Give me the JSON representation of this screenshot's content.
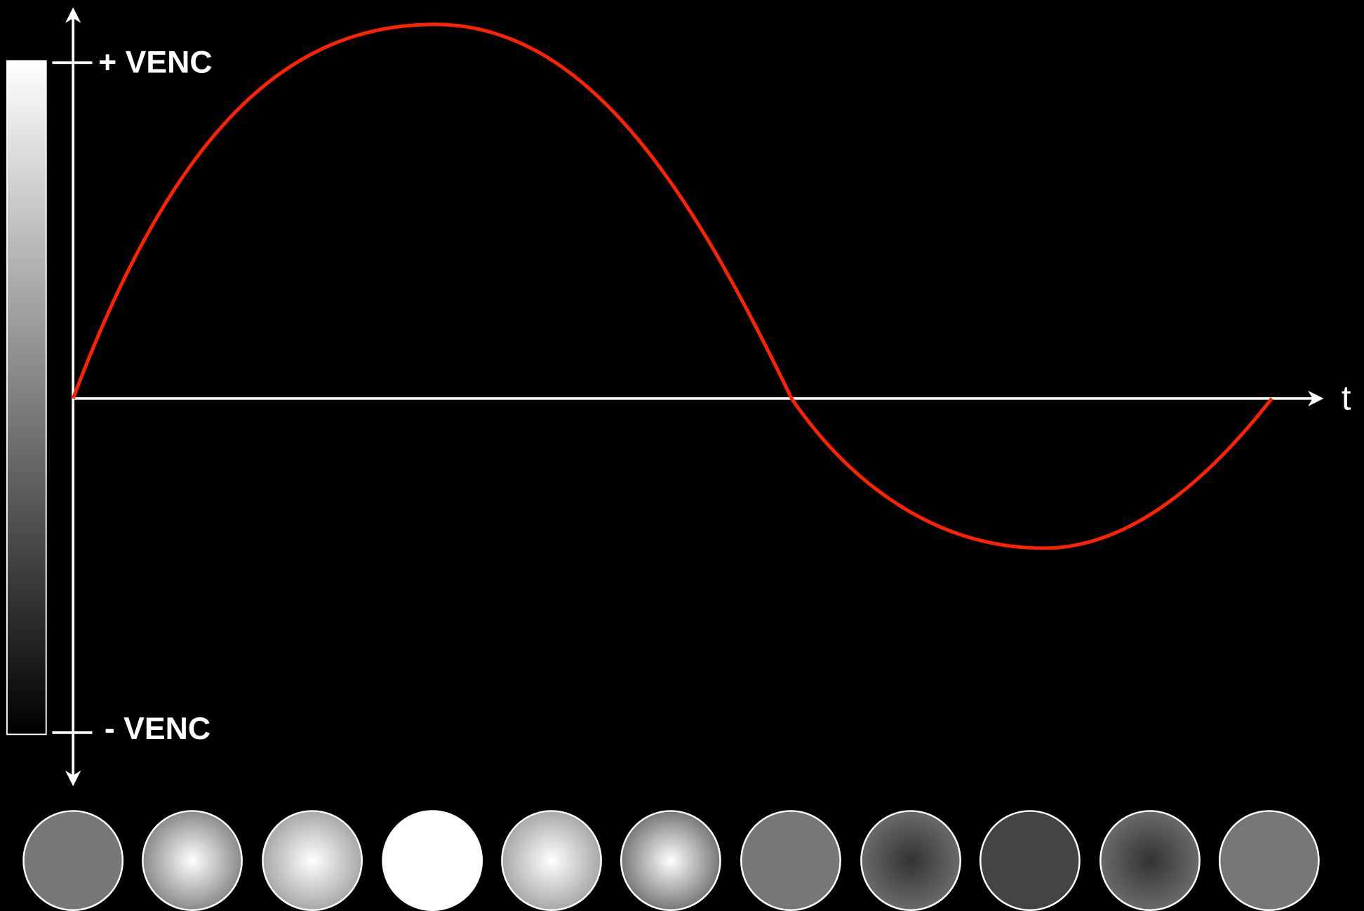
{
  "axis_labels": {
    "positive": "+ VENC",
    "negative": "- VENC",
    "time": "t"
  }
}
